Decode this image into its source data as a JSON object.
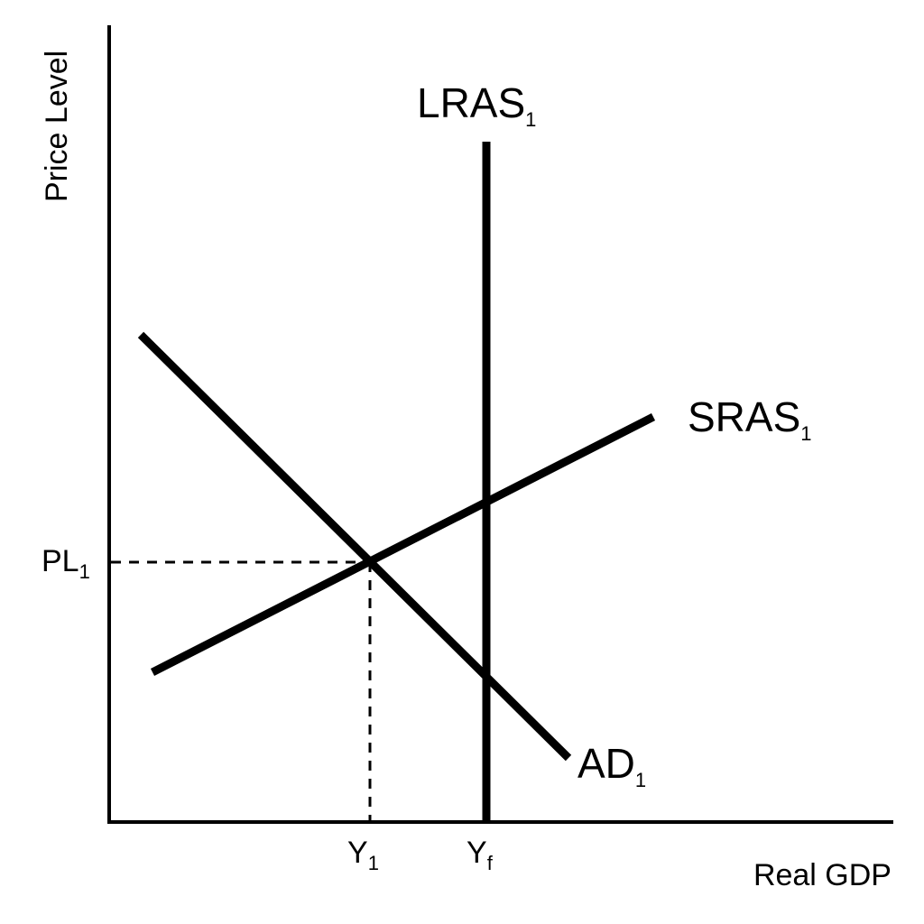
{
  "colors": {
    "line": "#000000",
    "background": "#ffffff"
  },
  "axes": {
    "y_title": "Price Level",
    "x_title": "Real GDP"
  },
  "curves": {
    "lras": {
      "label": "LRAS",
      "subscript": "1"
    },
    "sras": {
      "label": "SRAS",
      "subscript": "1"
    },
    "ad": {
      "label": "AD",
      "subscript": "1"
    }
  },
  "ticks": {
    "price_level": {
      "label": "PL",
      "subscript": "1"
    },
    "y1": {
      "label": "Y",
      "subscript": "1"
    },
    "yf": {
      "label": "Y",
      "subscript": "f"
    }
  }
}
